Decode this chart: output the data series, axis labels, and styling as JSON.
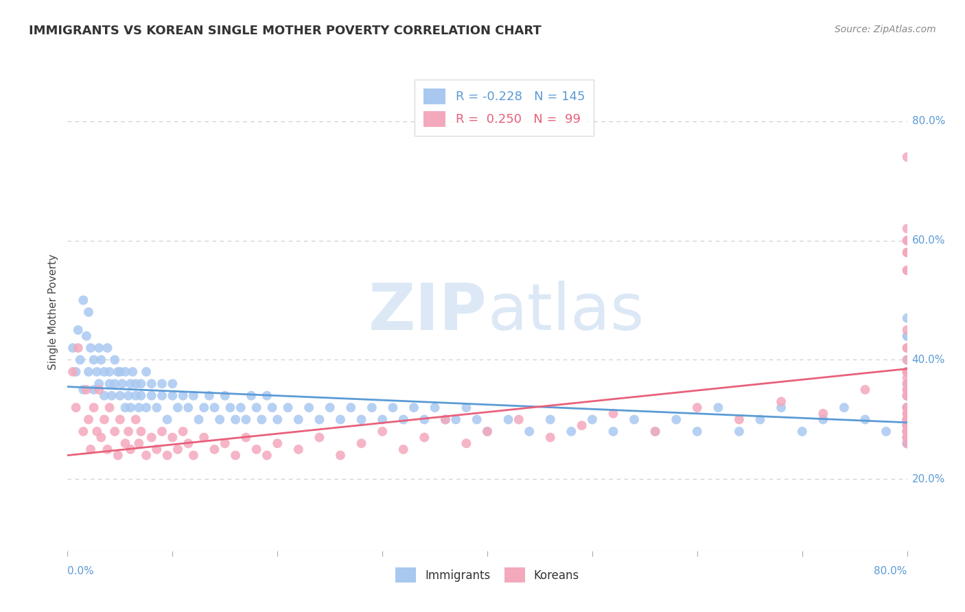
{
  "title": "IMMIGRANTS VS KOREAN SINGLE MOTHER POVERTY CORRELATION CHART",
  "source": "Source: ZipAtlas.com",
  "ylabel": "Single Mother Poverty",
  "xlim": [
    0.0,
    0.8
  ],
  "ylim": [
    0.08,
    0.88
  ],
  "yticks": [
    0.2,
    0.4,
    0.6,
    0.8
  ],
  "ytick_labels": [
    "20.0%",
    "40.0%",
    "60.0%",
    "80.0%"
  ],
  "color_immigrants": "#a8c8f0",
  "color_koreans": "#f4a8bc",
  "color_immigrants_line": "#5b9bd5",
  "color_koreans_line": "#e8607a",
  "watermark_text": "ZIPatlas",
  "watermark_color": "#e0e8f0",
  "imm_trend_x0": 0.0,
  "imm_trend_x1": 0.8,
  "imm_trend_y0": 0.355,
  "imm_trend_y1": 0.295,
  "kor_trend_x0": 0.0,
  "kor_trend_x1": 0.8,
  "kor_trend_y0": 0.24,
  "kor_trend_y1": 0.385,
  "immigrants_x": [
    0.005,
    0.008,
    0.01,
    0.012,
    0.015,
    0.015,
    0.018,
    0.02,
    0.02,
    0.022,
    0.025,
    0.025,
    0.028,
    0.03,
    0.03,
    0.032,
    0.035,
    0.035,
    0.038,
    0.04,
    0.04,
    0.042,
    0.045,
    0.045,
    0.048,
    0.05,
    0.05,
    0.052,
    0.055,
    0.055,
    0.058,
    0.06,
    0.06,
    0.062,
    0.065,
    0.065,
    0.068,
    0.07,
    0.07,
    0.075,
    0.075,
    0.08,
    0.08,
    0.085,
    0.09,
    0.09,
    0.095,
    0.1,
    0.1,
    0.105,
    0.11,
    0.115,
    0.12,
    0.125,
    0.13,
    0.135,
    0.14,
    0.145,
    0.15,
    0.155,
    0.16,
    0.165,
    0.17,
    0.175,
    0.18,
    0.185,
    0.19,
    0.195,
    0.2,
    0.21,
    0.22,
    0.23,
    0.24,
    0.25,
    0.26,
    0.27,
    0.28,
    0.29,
    0.3,
    0.31,
    0.32,
    0.33,
    0.34,
    0.35,
    0.36,
    0.37,
    0.38,
    0.39,
    0.4,
    0.42,
    0.44,
    0.46,
    0.48,
    0.5,
    0.52,
    0.54,
    0.56,
    0.58,
    0.6,
    0.62,
    0.64,
    0.66,
    0.68,
    0.7,
    0.72,
    0.74,
    0.76,
    0.78,
    0.8,
    0.8,
    0.8,
    0.8,
    0.8,
    0.8,
    0.8,
    0.8,
    0.8,
    0.8,
    0.8,
    0.8,
    0.8,
    0.8,
    0.8,
    0.8,
    0.8,
    0.8,
    0.8,
    0.8,
    0.8,
    0.8,
    0.8,
    0.8,
    0.8,
    0.8,
    0.8,
    0.8,
    0.8,
    0.8,
    0.8,
    0.8,
    0.8,
    0.8,
    0.8,
    0.8,
    0.8
  ],
  "immigrants_y": [
    0.42,
    0.38,
    0.45,
    0.4,
    0.5,
    0.35,
    0.44,
    0.48,
    0.38,
    0.42,
    0.35,
    0.4,
    0.38,
    0.42,
    0.36,
    0.4,
    0.38,
    0.34,
    0.42,
    0.36,
    0.38,
    0.34,
    0.4,
    0.36,
    0.38,
    0.34,
    0.38,
    0.36,
    0.32,
    0.38,
    0.34,
    0.36,
    0.32,
    0.38,
    0.34,
    0.36,
    0.32,
    0.36,
    0.34,
    0.38,
    0.32,
    0.34,
    0.36,
    0.32,
    0.34,
    0.36,
    0.3,
    0.34,
    0.36,
    0.32,
    0.34,
    0.32,
    0.34,
    0.3,
    0.32,
    0.34,
    0.32,
    0.3,
    0.34,
    0.32,
    0.3,
    0.32,
    0.3,
    0.34,
    0.32,
    0.3,
    0.34,
    0.32,
    0.3,
    0.32,
    0.3,
    0.32,
    0.3,
    0.32,
    0.3,
    0.32,
    0.3,
    0.32,
    0.3,
    0.32,
    0.3,
    0.32,
    0.3,
    0.32,
    0.3,
    0.3,
    0.32,
    0.3,
    0.28,
    0.3,
    0.28,
    0.3,
    0.28,
    0.3,
    0.28,
    0.3,
    0.28,
    0.3,
    0.28,
    0.32,
    0.28,
    0.3,
    0.32,
    0.28,
    0.3,
    0.32,
    0.3,
    0.28,
    0.47,
    0.3,
    0.44,
    0.28,
    0.32,
    0.38,
    0.27,
    0.3,
    0.34,
    0.26,
    0.4,
    0.28,
    0.32,
    0.36,
    0.29,
    0.44,
    0.27,
    0.3,
    0.38,
    0.26,
    0.32,
    0.28,
    0.34,
    0.3,
    0.27,
    0.36,
    0.29,
    0.32,
    0.28,
    0.26,
    0.3,
    0.34,
    0.27,
    0.29,
    0.32,
    0.26,
    0.28
  ],
  "koreans_x": [
    0.005,
    0.008,
    0.01,
    0.015,
    0.018,
    0.02,
    0.022,
    0.025,
    0.028,
    0.03,
    0.032,
    0.035,
    0.038,
    0.04,
    0.045,
    0.048,
    0.05,
    0.055,
    0.058,
    0.06,
    0.065,
    0.068,
    0.07,
    0.075,
    0.08,
    0.085,
    0.09,
    0.095,
    0.1,
    0.105,
    0.11,
    0.115,
    0.12,
    0.13,
    0.14,
    0.15,
    0.16,
    0.17,
    0.18,
    0.19,
    0.2,
    0.22,
    0.24,
    0.26,
    0.28,
    0.3,
    0.32,
    0.34,
    0.36,
    0.38,
    0.4,
    0.43,
    0.46,
    0.49,
    0.52,
    0.56,
    0.6,
    0.64,
    0.68,
    0.72,
    0.76,
    0.8,
    0.8,
    0.8,
    0.8,
    0.8,
    0.8,
    0.8,
    0.8,
    0.8,
    0.8,
    0.8,
    0.8,
    0.8,
    0.8,
    0.8,
    0.8,
    0.8,
    0.8,
    0.8,
    0.8,
    0.8,
    0.8,
    0.8,
    0.8,
    0.8,
    0.8,
    0.8,
    0.8,
    0.8,
    0.8,
    0.8,
    0.8,
    0.8,
    0.8,
    0.8,
    0.8,
    0.8,
    0.8
  ],
  "koreans_y": [
    0.38,
    0.32,
    0.42,
    0.28,
    0.35,
    0.3,
    0.25,
    0.32,
    0.28,
    0.35,
    0.27,
    0.3,
    0.25,
    0.32,
    0.28,
    0.24,
    0.3,
    0.26,
    0.28,
    0.25,
    0.3,
    0.26,
    0.28,
    0.24,
    0.27,
    0.25,
    0.28,
    0.24,
    0.27,
    0.25,
    0.28,
    0.26,
    0.24,
    0.27,
    0.25,
    0.26,
    0.24,
    0.27,
    0.25,
    0.24,
    0.26,
    0.25,
    0.27,
    0.24,
    0.26,
    0.28,
    0.25,
    0.27,
    0.3,
    0.26,
    0.28,
    0.3,
    0.27,
    0.29,
    0.31,
    0.28,
    0.32,
    0.3,
    0.33,
    0.31,
    0.35,
    0.38,
    0.42,
    0.62,
    0.28,
    0.58,
    0.34,
    0.3,
    0.6,
    0.38,
    0.27,
    0.32,
    0.55,
    0.29,
    0.74,
    0.31,
    0.28,
    0.45,
    0.35,
    0.4,
    0.3,
    0.58,
    0.27,
    0.34,
    0.28,
    0.38,
    0.32,
    0.26,
    0.3,
    0.36,
    0.29,
    0.55,
    0.27,
    0.42,
    0.31,
    0.28,
    0.35,
    0.6,
    0.37
  ]
}
